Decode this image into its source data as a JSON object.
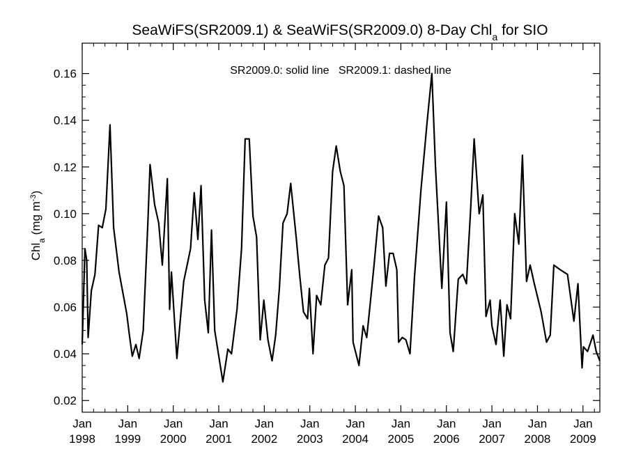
{
  "chart_data": {
    "type": "line",
    "title": {
      "prefix": "SeaWiFS(SR2009.1) & SeaWiFS(SR2009.0) 8-Day Chl",
      "subscript": "a",
      "suffix": " for SIO"
    },
    "ylabel": {
      "prefix": "Chl",
      "subscript": "a",
      "middle": " (mg m",
      "superscript": "-3",
      "suffix": ")"
    },
    "annotation": "SR2009.0: solid line   SR2009.1: dashed line",
    "xlim": [
      1998.0,
      2009.37
    ],
    "ylim": [
      0.015,
      0.173
    ],
    "yticks": [
      0.02,
      0.04,
      0.06,
      0.08,
      0.1,
      0.12,
      0.14,
      0.16
    ],
    "ytick_labels": [
      "0.02",
      "0.04",
      "0.06",
      "0.08",
      "0.10",
      "0.12",
      "0.14",
      "0.16"
    ],
    "xticks": [
      {
        "pos": 1998,
        "month": "Jan",
        "year": "1998"
      },
      {
        "pos": 1999,
        "month": "Jan",
        "year": "1999"
      },
      {
        "pos": 2000,
        "month": "Jan",
        "year": "2000"
      },
      {
        "pos": 2001,
        "month": "Jan",
        "year": "2001"
      },
      {
        "pos": 2002,
        "month": "Jan",
        "year": "2002"
      },
      {
        "pos": 2003,
        "month": "Jan",
        "year": "2003"
      },
      {
        "pos": 2004,
        "month": "Jan",
        "year": "2004"
      },
      {
        "pos": 2005,
        "month": "Jan",
        "year": "2005"
      },
      {
        "pos": 2006,
        "month": "Jan",
        "year": "2006"
      },
      {
        "pos": 2007,
        "month": "Jan",
        "year": "2007"
      },
      {
        "pos": 2008,
        "month": "Jan",
        "year": "2008"
      },
      {
        "pos": 2009,
        "month": "Jan",
        "year": "2009"
      }
    ],
    "minor_ticks_per_year": 4,
    "grid": false,
    "series": [
      {
        "style": "solid",
        "color": "#000000",
        "points": [
          [
            1998.0,
            0.044
          ],
          [
            1998.06,
            0.085
          ],
          [
            1998.1,
            0.08
          ],
          [
            1998.13,
            0.047
          ],
          [
            1998.2,
            0.067
          ],
          [
            1998.28,
            0.074
          ],
          [
            1998.36,
            0.095
          ],
          [
            1998.44,
            0.094
          ],
          [
            1998.52,
            0.102
          ],
          [
            1998.61,
            0.138
          ],
          [
            1998.69,
            0.094
          ],
          [
            1998.81,
            0.075
          ],
          [
            1998.98,
            0.057
          ],
          [
            1999.03,
            0.049
          ],
          [
            1999.1,
            0.039
          ],
          [
            1999.18,
            0.044
          ],
          [
            1999.25,
            0.038
          ],
          [
            1999.34,
            0.05
          ],
          [
            1999.44,
            0.095
          ],
          [
            1999.49,
            0.121
          ],
          [
            1999.59,
            0.104
          ],
          [
            1999.68,
            0.096
          ],
          [
            1999.76,
            0.078
          ],
          [
            1999.87,
            0.115
          ],
          [
            1999.92,
            0.059
          ],
          [
            1999.96,
            0.075
          ],
          [
            2000.08,
            0.038
          ],
          [
            2000.23,
            0.071
          ],
          [
            2000.38,
            0.085
          ],
          [
            2000.46,
            0.109
          ],
          [
            2000.54,
            0.089
          ],
          [
            2000.61,
            0.112
          ],
          [
            2000.69,
            0.063
          ],
          [
            2000.77,
            0.049
          ],
          [
            2000.84,
            0.093
          ],
          [
            2000.91,
            0.05
          ],
          [
            2001.09,
            0.028
          ],
          [
            2001.2,
            0.042
          ],
          [
            2001.28,
            0.04
          ],
          [
            2001.4,
            0.059
          ],
          [
            2001.5,
            0.085
          ],
          [
            2001.58,
            0.132
          ],
          [
            2001.67,
            0.132
          ],
          [
            2001.75,
            0.099
          ],
          [
            2001.83,
            0.09
          ],
          [
            2001.91,
            0.046
          ],
          [
            2001.99,
            0.063
          ],
          [
            2002.08,
            0.046
          ],
          [
            2002.17,
            0.037
          ],
          [
            2002.25,
            0.048
          ],
          [
            2002.33,
            0.068
          ],
          [
            2002.41,
            0.096
          ],
          [
            2002.5,
            0.1
          ],
          [
            2002.58,
            0.113
          ],
          [
            2002.7,
            0.09
          ],
          [
            2002.78,
            0.073
          ],
          [
            2002.86,
            0.058
          ],
          [
            2002.95,
            0.055
          ],
          [
            2002.99,
            0.068
          ],
          [
            2003.07,
            0.04
          ],
          [
            2003.15,
            0.065
          ],
          [
            2003.24,
            0.061
          ],
          [
            2003.33,
            0.078
          ],
          [
            2003.41,
            0.081
          ],
          [
            2003.5,
            0.118
          ],
          [
            2003.58,
            0.129
          ],
          [
            2003.67,
            0.118
          ],
          [
            2003.75,
            0.112
          ],
          [
            2003.83,
            0.061
          ],
          [
            2003.92,
            0.076
          ],
          [
            2003.95,
            0.045
          ],
          [
            2004.08,
            0.035
          ],
          [
            2004.17,
            0.052
          ],
          [
            2004.25,
            0.047
          ],
          [
            2004.33,
            0.062
          ],
          [
            2004.41,
            0.078
          ],
          [
            2004.51,
            0.099
          ],
          [
            2004.6,
            0.094
          ],
          [
            2004.67,
            0.069
          ],
          [
            2004.75,
            0.083
          ],
          [
            2004.83,
            0.083
          ],
          [
            2004.91,
            0.076
          ],
          [
            2004.95,
            0.045
          ],
          [
            2005.03,
            0.047
          ],
          [
            2005.11,
            0.046
          ],
          [
            2005.2,
            0.04
          ],
          [
            2005.3,
            0.073
          ],
          [
            2005.44,
            0.11
          ],
          [
            2005.58,
            0.14
          ],
          [
            2005.68,
            0.16
          ],
          [
            2005.76,
            0.12
          ],
          [
            2005.9,
            0.068
          ],
          [
            2006.0,
            0.105
          ],
          [
            2006.08,
            0.049
          ],
          [
            2006.15,
            0.041
          ],
          [
            2006.26,
            0.072
          ],
          [
            2006.36,
            0.074
          ],
          [
            2006.44,
            0.07
          ],
          [
            2006.53,
            0.101
          ],
          [
            2006.61,
            0.132
          ],
          [
            2006.72,
            0.1
          ],
          [
            2006.8,
            0.108
          ],
          [
            2006.87,
            0.056
          ],
          [
            2006.96,
            0.063
          ],
          [
            2007.0,
            0.052
          ],
          [
            2007.09,
            0.044
          ],
          [
            2007.18,
            0.063
          ],
          [
            2007.26,
            0.039
          ],
          [
            2007.33,
            0.061
          ],
          [
            2007.41,
            0.055
          ],
          [
            2007.5,
            0.1
          ],
          [
            2007.59,
            0.087
          ],
          [
            2007.67,
            0.125
          ],
          [
            2007.76,
            0.071
          ],
          [
            2007.84,
            0.078
          ],
          [
            2007.92,
            0.071
          ],
          [
            2008.08,
            0.058
          ],
          [
            2008.2,
            0.045
          ],
          [
            2008.28,
            0.048
          ],
          [
            2008.36,
            0.078
          ],
          [
            2008.5,
            0.076
          ],
          [
            2008.66,
            0.074
          ],
          [
            2008.8,
            0.054
          ],
          [
            2008.89,
            0.07
          ],
          [
            2008.98,
            0.034
          ],
          [
            2009.01,
            0.043
          ],
          [
            2009.1,
            0.041
          ],
          [
            2009.22,
            0.048
          ],
          [
            2009.29,
            0.041
          ],
          [
            2009.37,
            0.037
          ]
        ]
      }
    ]
  }
}
